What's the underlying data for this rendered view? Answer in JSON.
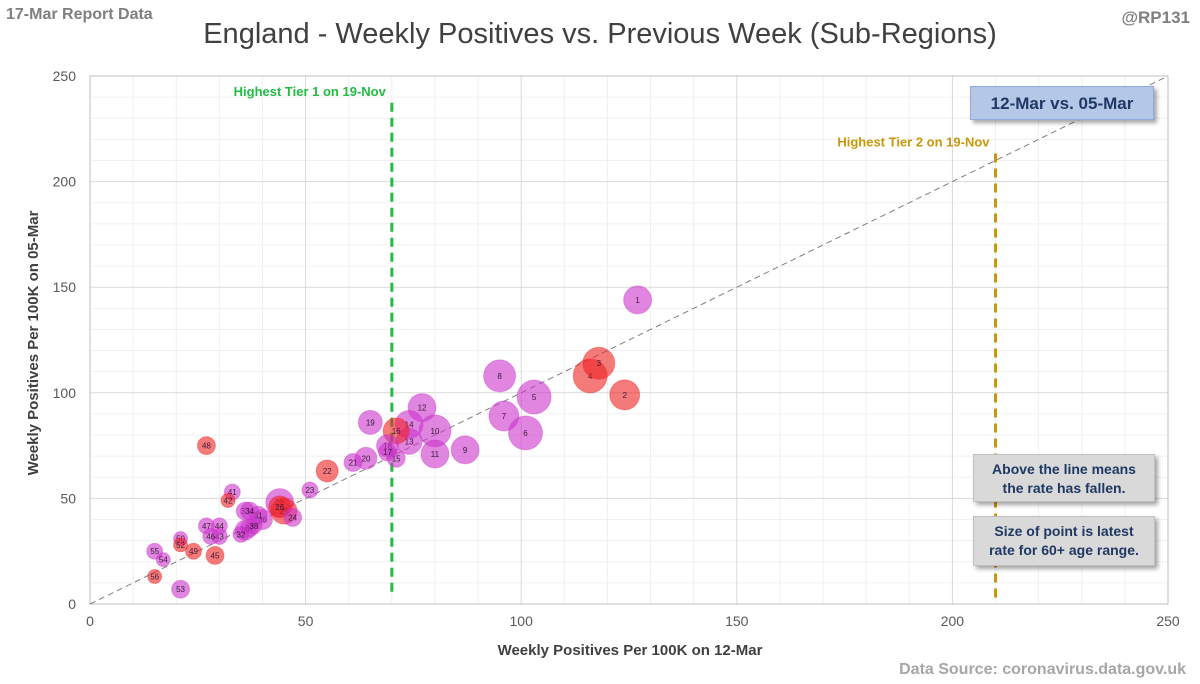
{
  "header": {
    "report_date": "17-Mar Report Data",
    "handle": "@RP131",
    "title": "England - Weekly Positives vs. Previous Week (Sub-Regions)"
  },
  "footer": {
    "source": "Data Source: coronavirus.data.gov.uk"
  },
  "notes": {
    "period": "12-Mar vs. 05-Mar",
    "above_line": "Above the line means the rate has fallen.",
    "point_size": "Size of point is latest rate for 60+ age range."
  },
  "colors": {
    "purple": "#cc33cc",
    "red": "#ee2222",
    "tier1": "#22bb44",
    "tier2": "#c8980a",
    "grid": "#e0e0e0",
    "axis_text": "#595959"
  },
  "chart_data": {
    "type": "scatter",
    "title": "England - Weekly Positives vs. Previous Week (Sub-Regions)",
    "xlabel": "Weekly Positives Per 100K on 12-Mar",
    "ylabel": "Weekly Positives Per 100K on 05-Mar",
    "xlim": [
      0,
      250
    ],
    "ylim": [
      0,
      250
    ],
    "xticks": [
      0,
      50,
      100,
      150,
      200,
      250
    ],
    "yticks": [
      0,
      50,
      100,
      150,
      200,
      250
    ],
    "grid": true,
    "diagonal": "y = x",
    "reference_lines": [
      {
        "label": "Highest Tier 1 on 19-Nov",
        "x": 70,
        "color_key": "tier1",
        "label_y": 243
      },
      {
        "label": "Highest Tier 2 on 19-Nov",
        "x": 210,
        "color_key": "tier2",
        "label_y": 219
      }
    ],
    "points": [
      {
        "id": "1",
        "x": 127,
        "y": 144,
        "size": 14,
        "color": "purple"
      },
      {
        "id": "2",
        "x": 124,
        "y": 99,
        "size": 15,
        "color": "red"
      },
      {
        "id": "3",
        "x": 118,
        "y": 114,
        "size": 16,
        "color": "red"
      },
      {
        "id": "4",
        "x": 116,
        "y": 108,
        "size": 17,
        "color": "red"
      },
      {
        "id": "5",
        "x": 103,
        "y": 98,
        "size": 17,
        "color": "purple"
      },
      {
        "id": "6",
        "x": 101,
        "y": 81,
        "size": 17,
        "color": "purple"
      },
      {
        "id": "7",
        "x": 96,
        "y": 89,
        "size": 15,
        "color": "purple"
      },
      {
        "id": "8",
        "x": 95,
        "y": 108,
        "size": 16,
        "color": "purple"
      },
      {
        "id": "9",
        "x": 87,
        "y": 73,
        "size": 14,
        "color": "purple"
      },
      {
        "id": "10",
        "x": 80,
        "y": 82,
        "size": 16,
        "color": "purple"
      },
      {
        "id": "11",
        "x": 80,
        "y": 71,
        "size": 14,
        "color": "purple"
      },
      {
        "id": "12",
        "x": 77,
        "y": 93,
        "size": 14,
        "color": "purple"
      },
      {
        "id": "13",
        "x": 74,
        "y": 77,
        "size": 13,
        "color": "purple"
      },
      {
        "id": "14",
        "x": 74,
        "y": 85,
        "size": 14,
        "color": "purple"
      },
      {
        "id": "15",
        "x": 71,
        "y": 69,
        "size": 9,
        "color": "purple"
      },
      {
        "id": "16",
        "x": 71,
        "y": 82,
        "size": 13,
        "color": "red"
      },
      {
        "id": "17",
        "x": 69,
        "y": 72,
        "size": 9,
        "color": "purple"
      },
      {
        "id": "18",
        "x": 69,
        "y": 75,
        "size": 11,
        "color": "purple"
      },
      {
        "id": "19",
        "x": 65,
        "y": 86,
        "size": 12,
        "color": "purple"
      },
      {
        "id": "20",
        "x": 64,
        "y": 69,
        "size": 11,
        "color": "purple"
      },
      {
        "id": "21",
        "x": 61,
        "y": 67,
        "size": 9,
        "color": "purple"
      },
      {
        "id": "22",
        "x": 55,
        "y": 63,
        "size": 11,
        "color": "red"
      },
      {
        "id": "23",
        "x": 51,
        "y": 54,
        "size": 8,
        "color": "purple"
      },
      {
        "id": "24",
        "x": 47,
        "y": 41,
        "size": 9,
        "color": "purple"
      },
      {
        "id": "25",
        "x": 45,
        "y": 44,
        "size": 13,
        "color": "red"
      },
      {
        "id": "26",
        "x": 44,
        "y": 46,
        "size": 11,
        "color": "red"
      },
      {
        "id": "28",
        "x": 44,
        "y": 48,
        "size": 14,
        "color": "purple"
      },
      {
        "id": "30",
        "x": 40,
        "y": 40,
        "size": 10,
        "color": "purple"
      },
      {
        "id": "31",
        "x": 39,
        "y": 42,
        "size": 9,
        "color": "purple"
      },
      {
        "id": "32",
        "x": 35,
        "y": 33,
        "size": 8,
        "color": "purple"
      },
      {
        "id": "33",
        "x": 36,
        "y": 44,
        "size": 9,
        "color": "purple"
      },
      {
        "id": "34",
        "x": 37,
        "y": 44,
        "size": 9,
        "color": "purple"
      },
      {
        "id": "36",
        "x": 36,
        "y": 35,
        "size": 10,
        "color": "purple"
      },
      {
        "id": "37",
        "x": 37,
        "y": 36,
        "size": 9,
        "color": "purple"
      },
      {
        "id": "38",
        "x": 38,
        "y": 37,
        "size": 8,
        "color": "purple"
      },
      {
        "id": "41",
        "x": 33,
        "y": 53,
        "size": 8,
        "color": "purple"
      },
      {
        "id": "42",
        "x": 32,
        "y": 49,
        "size": 7,
        "color": "red"
      },
      {
        "id": "43",
        "x": 30,
        "y": 32,
        "size": 8,
        "color": "purple"
      },
      {
        "id": "44",
        "x": 30,
        "y": 37,
        "size": 8,
        "color": "purple"
      },
      {
        "id": "45",
        "x": 29,
        "y": 23,
        "size": 9,
        "color": "red"
      },
      {
        "id": "46",
        "x": 28,
        "y": 32,
        "size": 8,
        "color": "purple"
      },
      {
        "id": "47",
        "x": 27,
        "y": 37,
        "size": 8,
        "color": "purple"
      },
      {
        "id": "48",
        "x": 27,
        "y": 75,
        "size": 9,
        "color": "red"
      },
      {
        "id": "49",
        "x": 24,
        "y": 25,
        "size": 8,
        "color": "red"
      },
      {
        "id": "50",
        "x": 21,
        "y": 31,
        "size": 7,
        "color": "purple"
      },
      {
        "id": "52",
        "x": 21,
        "y": 28,
        "size": 7,
        "color": "red"
      },
      {
        "id": "53",
        "x": 21,
        "y": 7,
        "size": 9,
        "color": "purple"
      },
      {
        "id": "54",
        "x": 17,
        "y": 21,
        "size": 7,
        "color": "purple"
      },
      {
        "id": "55",
        "x": 15,
        "y": 25,
        "size": 8,
        "color": "purple"
      },
      {
        "id": "56",
        "x": 15,
        "y": 13,
        "size": 7,
        "color": "red"
      }
    ]
  }
}
